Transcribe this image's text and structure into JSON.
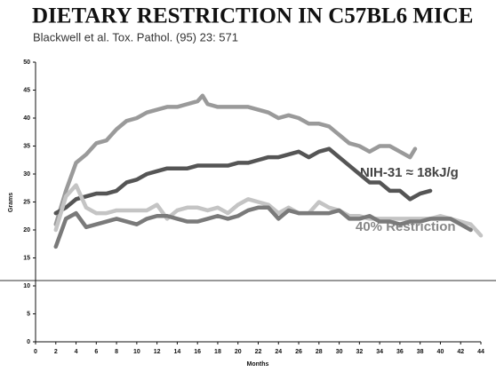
{
  "chart_data": {
    "type": "line",
    "title": "DIETARY RESTRICTION IN C57BL6 MICE",
    "subtitle": "Blackwell et al. Tox. Pathol. (95) 23: 571",
    "x_label": "Months",
    "y_label": "Grams",
    "annotations": [
      "NIH-31 ≈ 18kJ/g",
      "40% Restriction"
    ],
    "xlim": [
      0,
      44
    ],
    "xticks": [
      0,
      2,
      4,
      6,
      8,
      10,
      12,
      14,
      16,
      18,
      20,
      22,
      24,
      26,
      28,
      30,
      32,
      34,
      36,
      38,
      40,
      42,
      44
    ],
    "ylim": [
      0,
      50
    ],
    "yticks": [
      0,
      5,
      10,
      15,
      20,
      25,
      30,
      35,
      40,
      45,
      50
    ],
    "series": [
      {
        "color": "#9a9a9a",
        "x": [
          2,
          3,
          4,
          5,
          6,
          7,
          8,
          9,
          10,
          11,
          12,
          13,
          14,
          15,
          16,
          16.5,
          17,
          18,
          19,
          20,
          21,
          22,
          23,
          24,
          25,
          26,
          27,
          28,
          29,
          30,
          31,
          32,
          33,
          34,
          35,
          36,
          37,
          37.5
        ],
        "values": [
          21,
          27,
          32,
          33.5,
          35.5,
          36,
          38,
          39.5,
          40,
          41,
          41.5,
          42,
          42,
          42.5,
          43,
          44,
          42.5,
          42,
          42,
          42,
          42,
          41.5,
          41,
          40,
          40.5,
          40,
          39,
          39,
          38.5,
          37,
          35.5,
          35,
          34,
          35,
          35,
          34,
          33,
          34.5
        ]
      },
      {
        "color": "#555555",
        "x": [
          2,
          3,
          4,
          5,
          6,
          7,
          8,
          9,
          10,
          11,
          12,
          13,
          14,
          15,
          16,
          17,
          18,
          19,
          20,
          21,
          22,
          23,
          24,
          25,
          26,
          27,
          28,
          29,
          30,
          31,
          32,
          33,
          34,
          35,
          36,
          37,
          38,
          39
        ],
        "values": [
          23,
          24,
          25.5,
          26,
          26.5,
          26.5,
          27,
          28.5,
          29,
          30,
          30.5,
          31,
          31,
          31,
          31.5,
          31.5,
          31.5,
          31.5,
          32,
          32,
          32.5,
          33,
          33,
          33.5,
          34,
          33,
          34,
          34.5,
          33,
          31.5,
          30,
          28.5,
          28.5,
          27,
          27,
          25.5,
          26.5,
          27
        ]
      },
      {
        "color": "#c4c4c4",
        "x": [
          2,
          3,
          4,
          5,
          6,
          7,
          8,
          9,
          10,
          11,
          12,
          13,
          14,
          15,
          16,
          17,
          18,
          19,
          20,
          21,
          22,
          23,
          24,
          25,
          26,
          27,
          28,
          29,
          30,
          31,
          32,
          33,
          34,
          35,
          36,
          37,
          38,
          39,
          40,
          41,
          42,
          43,
          44
        ],
        "values": [
          20,
          26,
          28,
          24,
          23,
          23,
          23.5,
          23.5,
          23.5,
          23.5,
          24.5,
          22,
          23.5,
          24,
          24,
          23.5,
          24,
          23,
          24.5,
          25.5,
          25,
          24.5,
          23,
          24,
          23,
          23,
          25,
          24,
          23.5,
          22.5,
          22.5,
          22,
          22,
          22,
          22,
          22,
          22,
          22,
          22.5,
          22,
          21.5,
          21,
          19
        ]
      },
      {
        "color": "#7a7a7a",
        "x": [
          2,
          3,
          4,
          5,
          6,
          7,
          8,
          9,
          10,
          11,
          12,
          13,
          14,
          15,
          16,
          17,
          18,
          19,
          20,
          21,
          22,
          23,
          24,
          25,
          26,
          27,
          28,
          29,
          30,
          31,
          32,
          33,
          34,
          35,
          36,
          37,
          38,
          39,
          40,
          41,
          42,
          43
        ],
        "values": [
          17,
          22,
          23,
          20.5,
          21,
          21.5,
          22,
          21.5,
          21,
          22,
          22.5,
          22.5,
          22,
          21.5,
          21.5,
          22,
          22.5,
          22,
          22.5,
          23.5,
          24,
          24,
          22,
          23.5,
          23,
          23,
          23,
          23,
          23.5,
          22,
          22,
          22.5,
          21.5,
          21.5,
          21,
          21.5,
          21.5,
          22,
          22,
          22,
          21,
          20
        ]
      }
    ]
  }
}
